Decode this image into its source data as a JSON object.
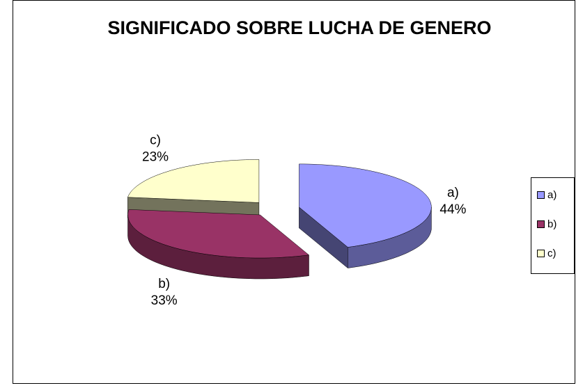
{
  "chart_data": {
    "type": "pie",
    "title": "SIGNIFICADO SOBRE LUCHA DE GENERO",
    "categories": [
      "a)",
      "b)",
      "c)"
    ],
    "values": [
      44,
      33,
      23
    ],
    "value_labels": [
      "44%",
      "33%",
      "23%"
    ],
    "colors": [
      "#9999ff",
      "#993366",
      "#ffffcc"
    ],
    "legend": "right"
  }
}
